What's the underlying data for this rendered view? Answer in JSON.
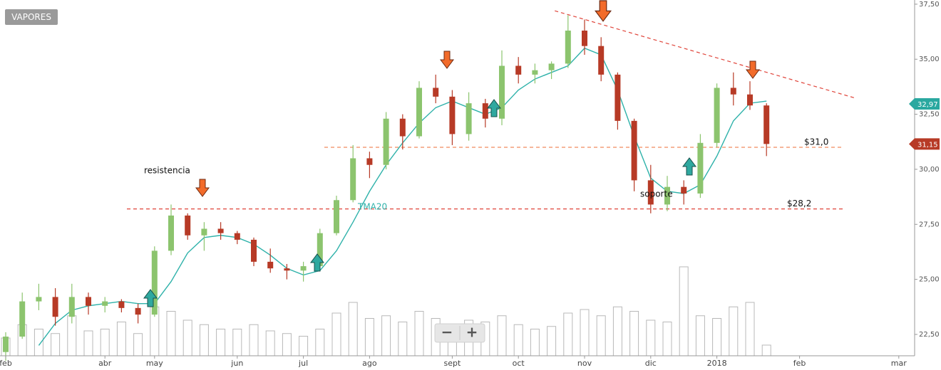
{
  "chart_data": {
    "type": "candlestick",
    "title": "VAPORES",
    "categories": [
      "feb",
      null,
      null,
      null,
      null,
      null,
      "abr",
      null,
      null,
      "may",
      null,
      null,
      null,
      null,
      "jun",
      null,
      null,
      null,
      "jul",
      null,
      null,
      null,
      "ago",
      null,
      null,
      null,
      null,
      "sept",
      null,
      null,
      null,
      "oct",
      null,
      null,
      null,
      "nov",
      null,
      null,
      null,
      "dic",
      null,
      null,
      null,
      "2018",
      null,
      null,
      null,
      null,
      "feb",
      null,
      null,
      null,
      null,
      null,
      "mar"
    ],
    "ohlc": {
      "open": [
        21.7,
        22.4,
        24.0,
        24.2,
        23.3,
        24.2,
        23.8,
        24.0,
        23.7,
        23.4,
        26.3,
        27.9,
        27.0,
        27.3,
        27.1,
        26.8,
        25.8,
        25.5,
        25.4,
        25.6,
        27.1,
        28.6,
        30.5,
        30.2,
        32.3,
        31.5,
        33.7,
        33.3,
        31.6,
        33.0,
        32.3,
        34.7,
        34.3,
        34.5,
        34.8,
        36.3,
        35.6,
        34.3,
        32.2,
        29.5,
        28.4,
        29.2,
        28.9,
        31.2,
        33.7,
        33.4,
        32.9,
        null,
        null,
        null,
        null,
        null,
        null,
        null,
        null
      ],
      "high": [
        22.6,
        24.4,
        24.8,
        24.6,
        24.8,
        24.4,
        24.2,
        24.1,
        23.9,
        26.5,
        28.4,
        28.0,
        27.6,
        27.6,
        27.2,
        26.9,
        26.4,
        25.7,
        25.8,
        27.3,
        28.8,
        31.1,
        30.8,
        32.6,
        32.5,
        34.0,
        34.3,
        33.6,
        33.5,
        33.2,
        35.4,
        35.1,
        34.8,
        34.9,
        37.0,
        36.8,
        36.0,
        34.4,
        32.3,
        30.2,
        29.7,
        29.5,
        31.6,
        33.9,
        34.4,
        34.0,
        33.0,
        null,
        null,
        null,
        null,
        null,
        null,
        null,
        null
      ],
      "low": [
        21.3,
        22.3,
        23.6,
        22.9,
        23.0,
        23.4,
        23.5,
        23.5,
        23.0,
        23.3,
        26.1,
        26.8,
        26.3,
        26.8,
        26.6,
        25.6,
        25.3,
        25.0,
        24.9,
        25.5,
        27.0,
        28.5,
        29.6,
        30.0,
        30.9,
        31.4,
        33.0,
        31.1,
        31.3,
        31.9,
        32.0,
        33.9,
        33.9,
        34.1,
        34.6,
        35.2,
        34.0,
        31.8,
        29.0,
        28.0,
        28.1,
        28.4,
        28.7,
        31.0,
        32.9,
        32.7,
        30.6,
        null,
        null,
        null,
        null,
        null,
        null,
        null,
        null
      ],
      "close": [
        22.4,
        24.0,
        24.2,
        23.3,
        24.2,
        23.8,
        24.0,
        23.7,
        23.4,
        26.3,
        27.9,
        27.0,
        27.3,
        27.1,
        26.8,
        25.8,
        25.5,
        25.4,
        25.6,
        27.1,
        28.6,
        30.5,
        30.2,
        32.3,
        31.5,
        33.7,
        33.3,
        31.6,
        33.0,
        32.3,
        34.7,
        34.3,
        34.5,
        34.8,
        36.3,
        35.6,
        34.3,
        32.2,
        29.5,
        28.4,
        29.2,
        28.9,
        31.2,
        33.7,
        33.4,
        32.9,
        31.15,
        null,
        null,
        null,
        null,
        null,
        null,
        null,
        null
      ]
    },
    "up_color": "#8cc46e",
    "down_color": "#b73a26",
    "volume": [
      20,
      35,
      30,
      25,
      45,
      28,
      30,
      38,
      25,
      55,
      50,
      40,
      35,
      30,
      30,
      35,
      28,
      25,
      22,
      30,
      48,
      60,
      42,
      45,
      38,
      50,
      42,
      30,
      40,
      38,
      45,
      35,
      30,
      33,
      48,
      52,
      45,
      55,
      50,
      40,
      38,
      100,
      45,
      42,
      55,
      60,
      12,
      null,
      null,
      null,
      null,
      null,
      null,
      null,
      null
    ],
    "series": [
      {
        "name": "TMA20",
        "color": "#2fb2aa",
        "values": [
          null,
          null,
          22.0,
          23.0,
          23.6,
          23.8,
          23.9,
          24.0,
          23.9,
          23.9,
          24.9,
          26.2,
          26.9,
          27.0,
          26.9,
          26.6,
          26.1,
          25.5,
          25.2,
          25.4,
          26.3,
          27.6,
          29.0,
          30.2,
          31.2,
          32.1,
          32.8,
          33.1,
          32.8,
          32.5,
          32.8,
          33.6,
          34.1,
          34.4,
          34.7,
          35.5,
          35.2,
          33.6,
          31.5,
          29.6,
          29.0,
          28.9,
          29.3,
          30.6,
          32.2,
          33.0,
          33.1,
          null,
          null,
          null,
          null,
          null,
          null,
          null,
          null
        ]
      }
    ],
    "hlines": [
      {
        "value": 31.0,
        "label": "$31,0",
        "color": "#f08a5d"
      },
      {
        "value": 28.2,
        "label": "$28,2",
        "color": "#e0443a"
      }
    ],
    "trendline": {
      "from": [
        33.2,
        37.2
      ],
      "to": [
        51.3,
        33.25
      ],
      "color": "#e0443a"
    },
    "annotations": [
      "resistencia",
      "soporte"
    ],
    "price_tags": [
      {
        "value": 32.97,
        "label": "32,97",
        "color": "#2aa8a0"
      },
      {
        "value": 31.15,
        "label": "31,15",
        "color": "#b73a26"
      }
    ],
    "ylim": [
      21.53,
      37.69
    ],
    "yticks": [
      {
        "value": 22.5,
        "label": "22,50"
      },
      {
        "value": 25,
        "label": "25,00"
      },
      {
        "value": 27.5,
        "label": "27,50"
      },
      {
        "value": 30,
        "label": "30,00"
      },
      {
        "value": 32.5,
        "label": "32,50"
      },
      {
        "value": 35,
        "label": "35,00"
      },
      {
        "value": 37.5,
        "label": "37,50"
      }
    ],
    "controls": [
      "−",
      "+"
    ]
  }
}
